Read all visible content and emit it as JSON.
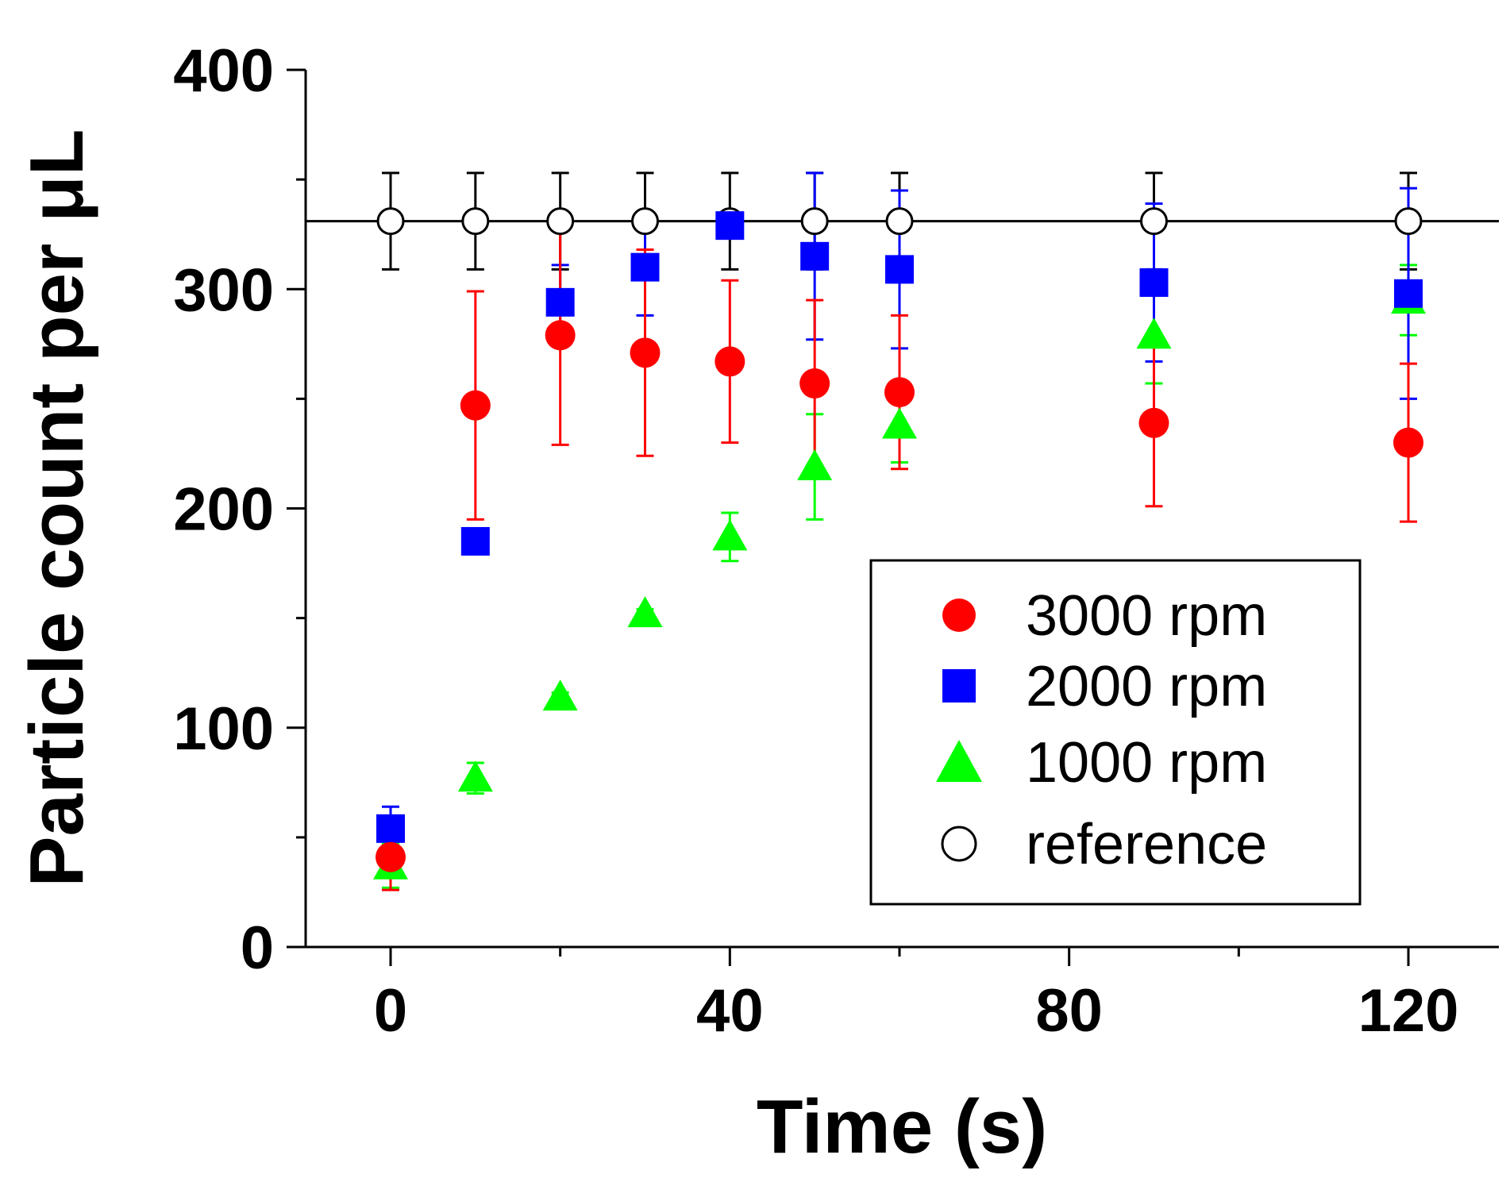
{
  "chart_data": {
    "type": "scatter",
    "title": "",
    "xlabel": "Time (s)",
    "ylabel": "Particle count per μL",
    "xlim": [
      -10,
      130
    ],
    "ylim": [
      0,
      400
    ],
    "x_ticks": [
      0,
      40,
      80,
      120
    ],
    "y_ticks": [
      0,
      100,
      200,
      300,
      400
    ],
    "grid": false,
    "legend_position": "bottom-right",
    "reference_line": 331,
    "series": [
      {
        "name": "3000 rpm",
        "marker": "circle",
        "color": "#ff0000",
        "x": [
          0,
          10,
          20,
          30,
          40,
          50,
          60,
          90,
          120
        ],
        "y": [
          41,
          247,
          279,
          271,
          267,
          257,
          253,
          239,
          230
        ],
        "err": [
          15,
          52,
          50,
          47,
          37,
          38,
          35,
          38,
          36
        ]
      },
      {
        "name": "2000 rpm",
        "marker": "square",
        "color": "#0000ff",
        "x": [
          0,
          10,
          20,
          30,
          40,
          50,
          60,
          90,
          120
        ],
        "y": [
          54,
          185,
          294,
          310,
          329,
          315,
          309,
          303,
          298
        ],
        "err": [
          10,
          3,
          17,
          22,
          4,
          38,
          36,
          36,
          48
        ]
      },
      {
        "name": "1000 rpm",
        "marker": "triangle",
        "color": "#00ff00",
        "x": [
          0,
          10,
          20,
          30,
          40,
          50,
          60,
          90,
          120
        ],
        "y": [
          37,
          77,
          114,
          152,
          187,
          219,
          238,
          279,
          295
        ],
        "err": [
          10,
          7,
          2,
          2,
          11,
          24,
          17,
          22,
          16
        ]
      },
      {
        "name": "reference",
        "marker": "open-circle",
        "color": "#000000",
        "x": [
          0,
          10,
          20,
          30,
          40,
          50,
          60,
          90,
          120
        ],
        "y": [
          331,
          331,
          331,
          331,
          331,
          331,
          331,
          331,
          331
        ],
        "err": [
          22,
          22,
          22,
          22,
          22,
          22,
          22,
          22,
          22
        ]
      }
    ]
  }
}
